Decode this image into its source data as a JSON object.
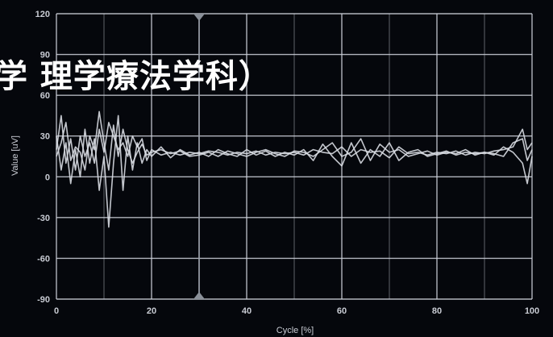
{
  "overlay_text": "学 理学療法学科）",
  "colors": {
    "background": "#05070c",
    "grid": "#cfd3dc",
    "series": "#d8dbe2",
    "text": "#c9ccd4",
    "overlay_text": "#ffffff"
  },
  "chart_data": {
    "type": "line",
    "title": "",
    "xlabel": "Cycle [%]",
    "ylabel": "Value [uV]",
    "xlim": [
      0,
      100
    ],
    "ylim": [
      -90,
      120
    ],
    "x_ticks": [
      "0",
      "20",
      "40",
      "60",
      "80",
      "100"
    ],
    "y_ticks": [
      "120",
      "90",
      "60",
      "30",
      "0",
      "-30",
      "-60",
      "-90"
    ],
    "x_tick_values": [
      0,
      20,
      40,
      60,
      80,
      100
    ],
    "y_tick_values": [
      120,
      90,
      60,
      30,
      0,
      -30,
      -60,
      -90
    ],
    "grid": true,
    "marker_line_x": 30,
    "series": [
      {
        "values": [
          [
            0,
            20
          ],
          [
            1,
            45
          ],
          [
            2,
            10
          ],
          [
            3,
            28
          ],
          [
            4,
            5
          ],
          [
            5,
            30
          ],
          [
            6,
            15
          ],
          [
            7,
            25
          ],
          [
            8,
            10
          ],
          [
            9,
            35
          ],
          [
            10,
            18
          ],
          [
            11,
            40
          ],
          [
            12,
            30
          ],
          [
            13,
            20
          ],
          [
            14,
            25
          ],
          [
            15,
            15
          ],
          [
            16,
            30
          ],
          [
            17,
            22
          ],
          [
            18,
            28
          ],
          [
            19,
            12
          ],
          [
            20,
            20
          ],
          [
            22,
            16
          ],
          [
            24,
            18
          ],
          [
            26,
            16
          ],
          [
            28,
            18
          ],
          [
            30,
            17
          ],
          [
            32,
            19
          ],
          [
            34,
            18
          ],
          [
            36,
            16
          ],
          [
            38,
            18
          ],
          [
            40,
            17
          ],
          [
            42,
            19
          ],
          [
            44,
            16
          ],
          [
            46,
            18
          ],
          [
            48,
            17
          ],
          [
            50,
            18
          ],
          [
            52,
            16
          ],
          [
            54,
            20
          ],
          [
            56,
            18
          ],
          [
            58,
            17
          ],
          [
            60,
            22
          ],
          [
            62,
            15
          ],
          [
            64,
            20
          ],
          [
            66,
            18
          ],
          [
            68,
            19
          ],
          [
            70,
            14
          ],
          [
            72,
            22
          ],
          [
            74,
            17
          ],
          [
            76,
            18
          ],
          [
            78,
            16
          ],
          [
            80,
            18
          ],
          [
            82,
            17
          ],
          [
            84,
            19
          ],
          [
            86,
            16
          ],
          [
            88,
            18
          ],
          [
            90,
            17
          ],
          [
            92,
            19
          ],
          [
            94,
            20
          ],
          [
            96,
            22
          ],
          [
            98,
            35
          ],
          [
            99,
            20
          ],
          [
            100,
            25
          ]
        ]
      },
      {
        "values": [
          [
            0,
            30
          ],
          [
            1,
            5
          ],
          [
            2,
            25
          ],
          [
            3,
            -5
          ],
          [
            4,
            20
          ],
          [
            5,
            0
          ],
          [
            6,
            35
          ],
          [
            7,
            10
          ],
          [
            8,
            28
          ],
          [
            9,
            -10
          ],
          [
            10,
            15
          ],
          [
            11,
            -37
          ],
          [
            12,
            10
          ],
          [
            13,
            45
          ],
          [
            14,
            -10
          ],
          [
            15,
            30
          ],
          [
            16,
            5
          ],
          [
            17,
            25
          ],
          [
            18,
            10
          ],
          [
            19,
            20
          ],
          [
            20,
            15
          ],
          [
            22,
            22
          ],
          [
            24,
            14
          ],
          [
            26,
            20
          ],
          [
            28,
            16
          ],
          [
            30,
            18
          ],
          [
            32,
            15
          ],
          [
            34,
            20
          ],
          [
            36,
            17
          ],
          [
            38,
            15
          ],
          [
            40,
            20
          ],
          [
            42,
            16
          ],
          [
            44,
            19
          ],
          [
            46,
            15
          ],
          [
            48,
            18
          ],
          [
            50,
            16
          ],
          [
            52,
            20
          ],
          [
            54,
            12
          ],
          [
            56,
            24
          ],
          [
            58,
            15
          ],
          [
            60,
            8
          ],
          [
            62,
            25
          ],
          [
            64,
            10
          ],
          [
            66,
            20
          ],
          [
            68,
            15
          ],
          [
            70,
            25
          ],
          [
            72,
            12
          ],
          [
            74,
            18
          ],
          [
            76,
            20
          ],
          [
            78,
            15
          ],
          [
            80,
            17
          ],
          [
            82,
            19
          ],
          [
            84,
            16
          ],
          [
            86,
            18
          ],
          [
            88,
            17
          ],
          [
            90,
            18
          ],
          [
            92,
            16
          ],
          [
            94,
            22
          ],
          [
            96,
            18
          ],
          [
            98,
            10
          ],
          [
            99,
            -5
          ],
          [
            100,
            15
          ]
        ]
      },
      {
        "values": [
          [
            0,
            15
          ],
          [
            1,
            25
          ],
          [
            2,
            40
          ],
          [
            3,
            12
          ],
          [
            4,
            22
          ],
          [
            5,
            18
          ],
          [
            6,
            5
          ],
          [
            7,
            30
          ],
          [
            8,
            20
          ],
          [
            9,
            48
          ],
          [
            10,
            25
          ],
          [
            11,
            5
          ],
          [
            12,
            38
          ],
          [
            13,
            15
          ],
          [
            14,
            35
          ],
          [
            15,
            20
          ],
          [
            16,
            10
          ],
          [
            17,
            18
          ],
          [
            18,
            24
          ],
          [
            19,
            16
          ],
          [
            20,
            18
          ],
          [
            22,
            20
          ],
          [
            24,
            17
          ],
          [
            26,
            19
          ],
          [
            28,
            15
          ],
          [
            30,
            16
          ],
          [
            32,
            18
          ],
          [
            34,
            15
          ],
          [
            36,
            19
          ],
          [
            38,
            17
          ],
          [
            40,
            15
          ],
          [
            42,
            18
          ],
          [
            44,
            20
          ],
          [
            46,
            17
          ],
          [
            48,
            15
          ],
          [
            50,
            19
          ],
          [
            52,
            18
          ],
          [
            54,
            15
          ],
          [
            56,
            20
          ],
          [
            58,
            25
          ],
          [
            60,
            15
          ],
          [
            62,
            18
          ],
          [
            64,
            28
          ],
          [
            66,
            12
          ],
          [
            68,
            24
          ],
          [
            70,
            18
          ],
          [
            72,
            20
          ],
          [
            74,
            15
          ],
          [
            76,
            17
          ],
          [
            78,
            19
          ],
          [
            80,
            16
          ],
          [
            82,
            18
          ],
          [
            84,
            17
          ],
          [
            86,
            20
          ],
          [
            88,
            16
          ],
          [
            90,
            18
          ],
          [
            92,
            17
          ],
          [
            94,
            15
          ],
          [
            96,
            25
          ],
          [
            98,
            28
          ],
          [
            99,
            12
          ],
          [
            100,
            20
          ]
        ]
      }
    ]
  }
}
